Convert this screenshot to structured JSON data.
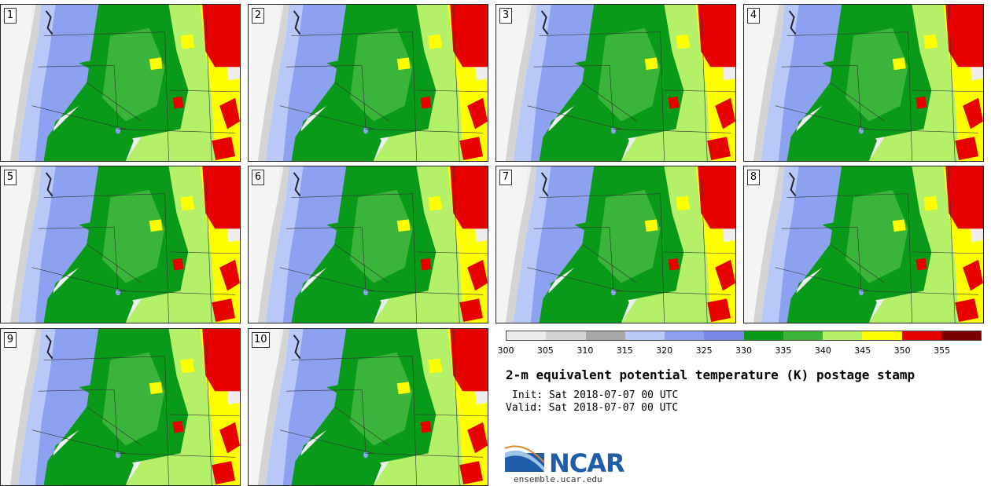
{
  "panels": [
    {
      "label": "1"
    },
    {
      "label": "2"
    },
    {
      "label": "3"
    },
    {
      "label": "4"
    },
    {
      "label": "5"
    },
    {
      "label": "6"
    },
    {
      "label": "7"
    },
    {
      "label": "8"
    },
    {
      "label": "9"
    },
    {
      "label": "10"
    }
  ],
  "colorbar": {
    "colors": [
      "#ebebeb",
      "#d4d4d4",
      "#a8a8a8",
      "#b8c8f8",
      "#8ca2f0",
      "#7a88e8",
      "#0a9a1a",
      "#3ab43a",
      "#b4f068",
      "#ffff00",
      "#e60000",
      "#7a0000"
    ],
    "ticks": [
      "300",
      "305",
      "310",
      "315",
      "320",
      "325",
      "330",
      "335",
      "340",
      "345",
      "350",
      "355"
    ]
  },
  "title": "2-m equivalent potential temperature (K) postage stamp",
  "init": "Init: Sat 2018-07-07 00 UTC",
  "valid": "Valid: Sat 2018-07-07 00 UTC",
  "logo_text": "NCAR",
  "site": "ensemble.ucar.edu"
}
